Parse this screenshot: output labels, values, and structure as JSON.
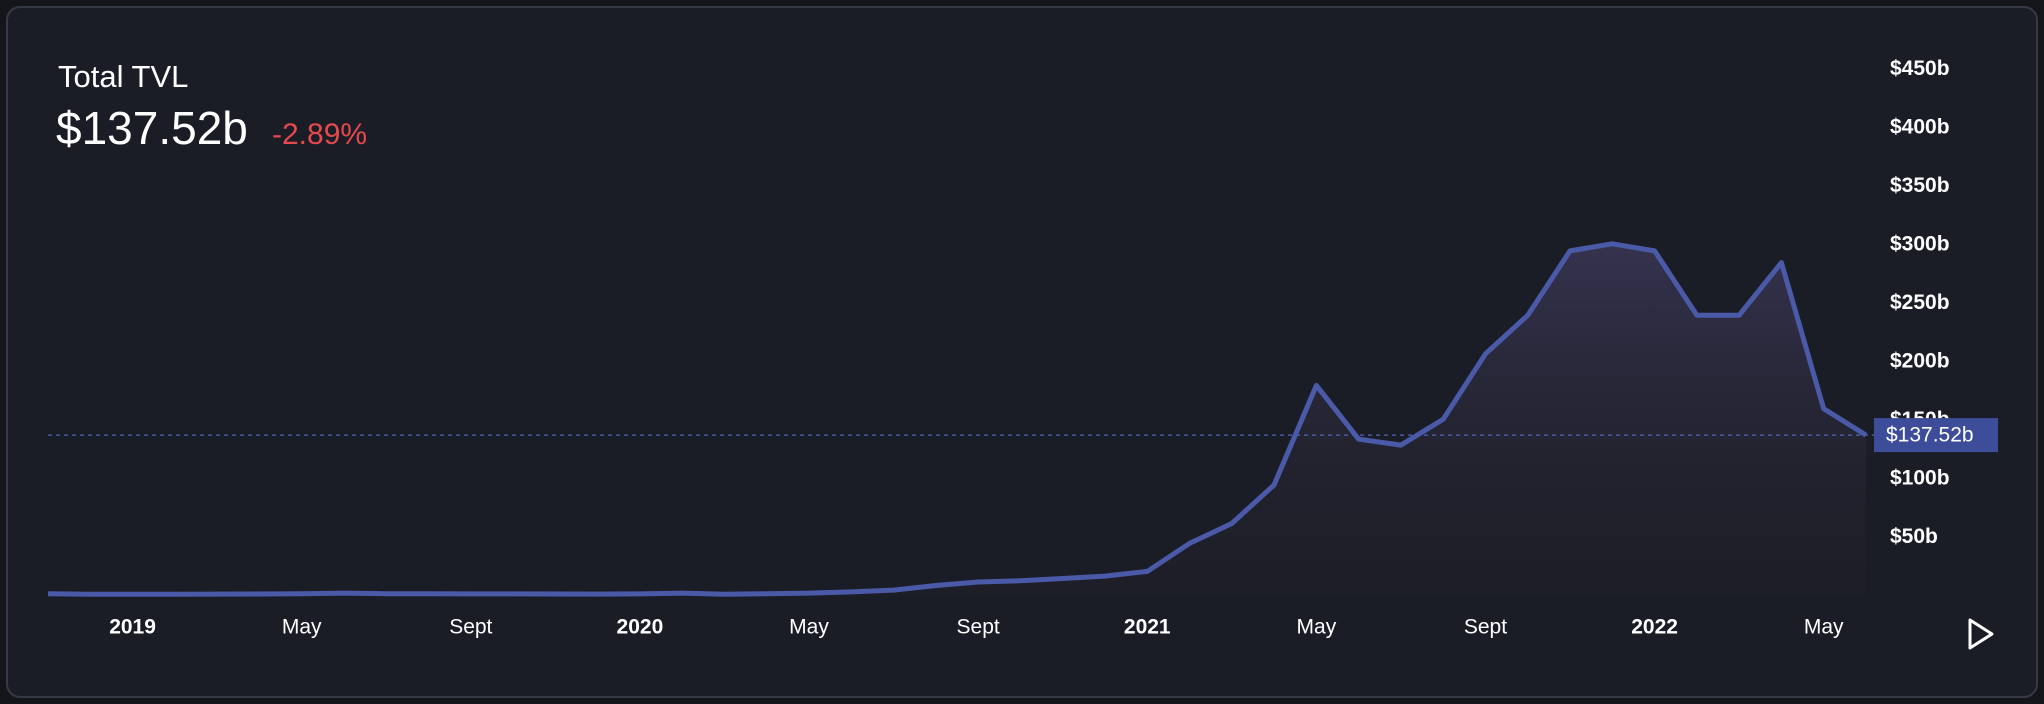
{
  "summary": {
    "title": "Total TVL",
    "value": "$137.52b",
    "change": "-2.89%"
  },
  "chart_data": {
    "type": "line",
    "color": "#4a5aa8",
    "x": [
      "2018-11",
      "2018-12",
      "2019-01",
      "2019-02",
      "2019-03",
      "2019-04",
      "2019-05",
      "2019-06",
      "2019-07",
      "2019-08",
      "2019-09",
      "2019-10",
      "2019-11",
      "2019-12",
      "2020-01",
      "2020-02",
      "2020-03",
      "2020-04",
      "2020-05",
      "2020-06",
      "2020-07",
      "2020-08",
      "2020-09",
      "2020-10",
      "2020-11",
      "2020-12",
      "2021-01",
      "2021-02",
      "2021-03",
      "2021-04",
      "2021-05",
      "2021-06",
      "2021-07",
      "2021-08",
      "2021-09",
      "2021-10",
      "2021-11",
      "2021-12",
      "2022-01",
      "2022-02",
      "2022-03",
      "2022-04",
      "2022-05",
      "2022-06"
    ],
    "values": [
      2,
      1.5,
      1.5,
      1.5,
      1.6,
      1.7,
      2,
      2.5,
      2,
      2,
      1.8,
      1.8,
      1.7,
      1.6,
      1.8,
      2.5,
      1.5,
      2,
      2.5,
      3.5,
      5,
      9,
      12,
      13,
      15,
      17,
      21,
      45,
      62,
      95,
      180,
      134,
      129,
      151,
      207,
      240,
      295,
      301,
      295,
      240,
      240,
      285,
      160,
      137.52
    ],
    "ylim": [
      0,
      500
    ],
    "yticks": [
      {
        "value": 50,
        "label": "$50b"
      },
      {
        "value": 100,
        "label": "$100b"
      },
      {
        "value": 150,
        "label": "$150b"
      },
      {
        "value": 200,
        "label": "$200b"
      },
      {
        "value": 250,
        "label": "$250b"
      },
      {
        "value": 300,
        "label": "$300b"
      },
      {
        "value": 350,
        "label": "$350b"
      },
      {
        "value": 400,
        "label": "$400b"
      },
      {
        "value": 450,
        "label": "$450b"
      }
    ],
    "xticks": [
      {
        "value": "2019-01",
        "label": "2019"
      },
      {
        "value": "2019-05",
        "label": "May"
      },
      {
        "value": "2019-09",
        "label": "Sept"
      },
      {
        "value": "2020-01",
        "label": "2020"
      },
      {
        "value": "2020-05",
        "label": "May"
      },
      {
        "value": "2020-09",
        "label": "Sept"
      },
      {
        "value": "2021-01",
        "label": "2021"
      },
      {
        "value": "2021-05",
        "label": "May"
      },
      {
        "value": "2021-09",
        "label": "Sept"
      },
      {
        "value": "2022-01",
        "label": "2022"
      },
      {
        "value": "2022-05",
        "label": "May"
      }
    ],
    "reference_line": {
      "value": 137.52,
      "label": "$137.52b"
    }
  }
}
